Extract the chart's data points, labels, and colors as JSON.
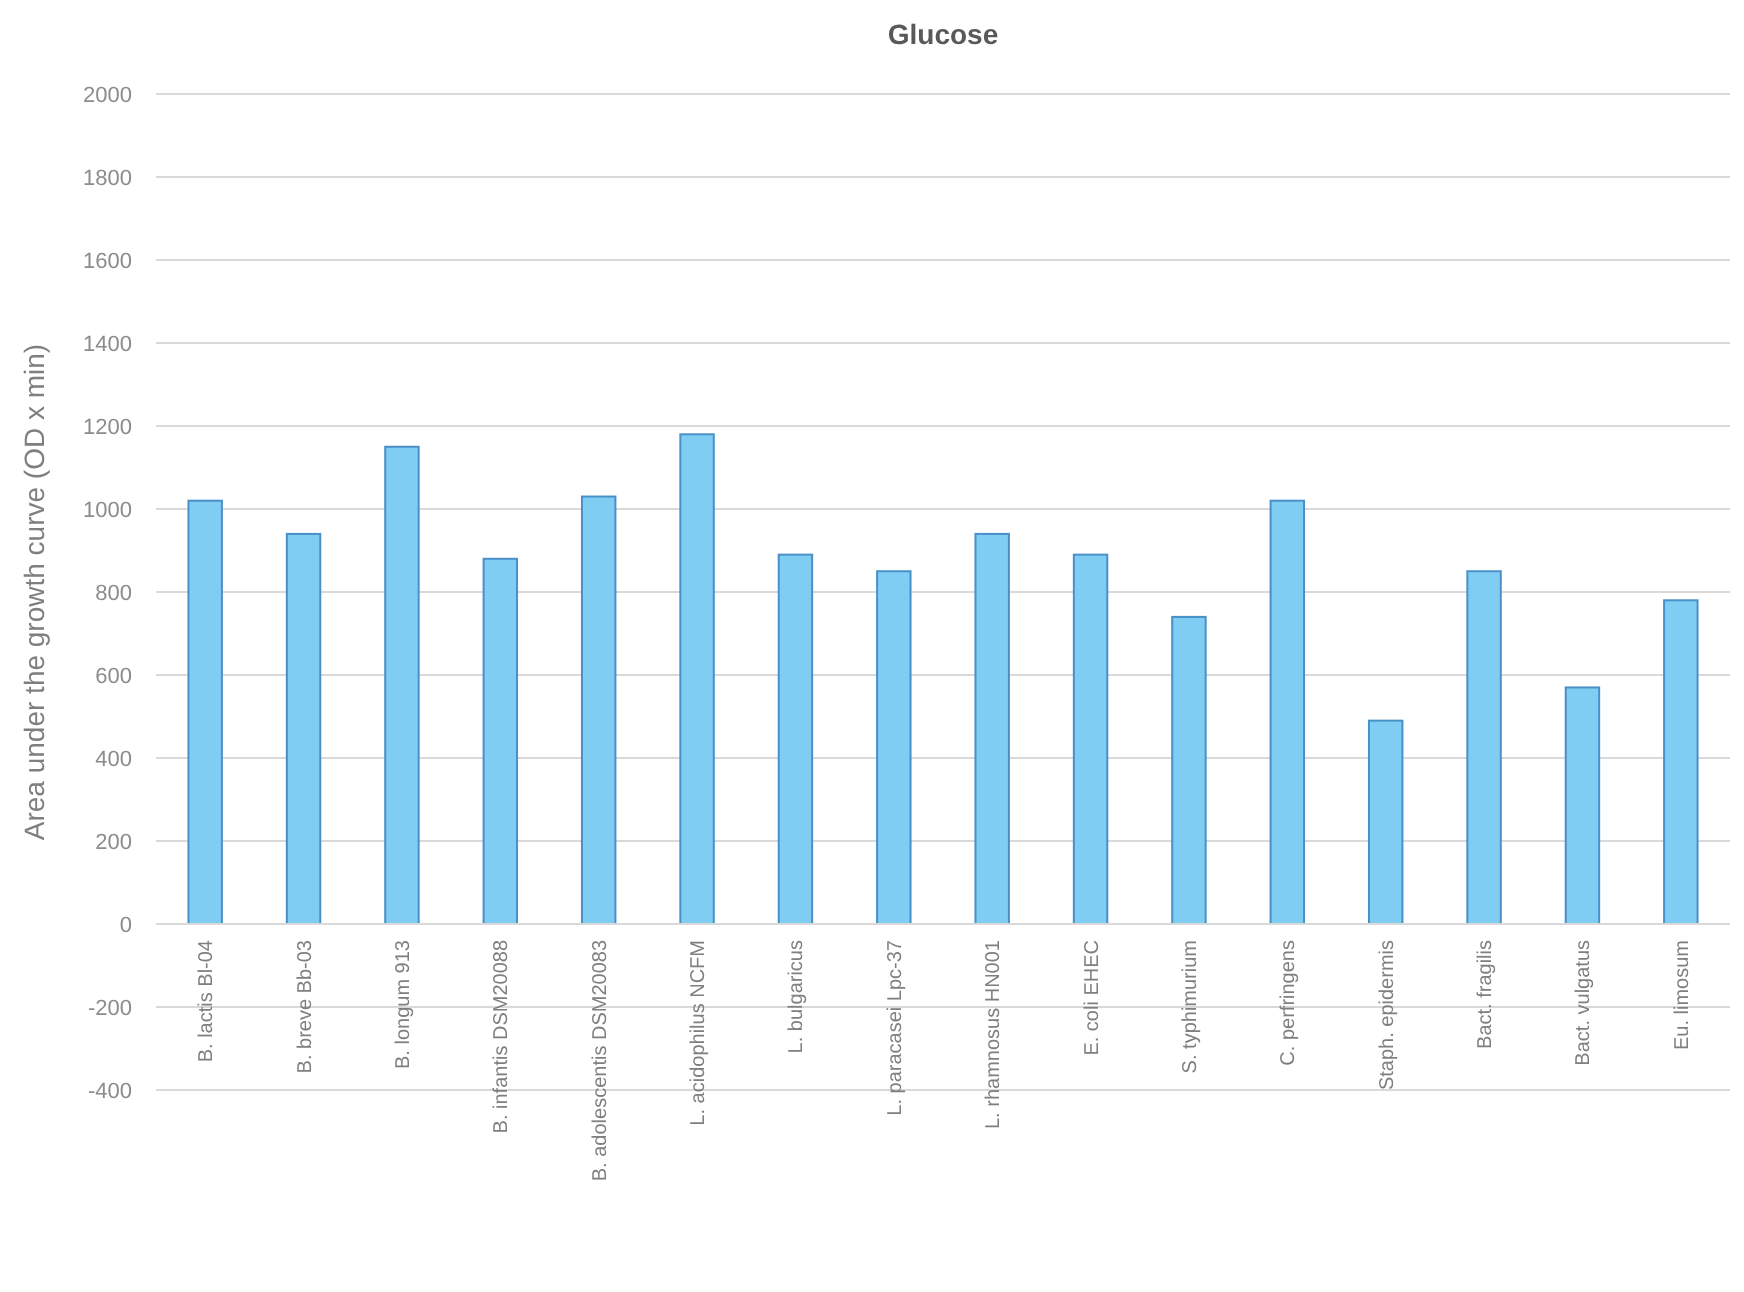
{
  "chart_data": {
    "type": "bar",
    "title": "Glucose",
    "ylabel": "Area under the growth curve (OD x min)",
    "categories": [
      "B. lactis Bl-04",
      "B. breve Bb-03",
      "B. longum 913",
      "B. infantis DSM20088",
      "B. adolescentis DSM20083",
      "L. acidophilus NCFM",
      "L. bulgaricus",
      "L. paracasei Lpc-37",
      "L. rhamnosus HN001",
      "E. coli EHEC",
      "S. typhimurium",
      "C. perfringens",
      "Staph. epidermis",
      "Bact. fragilis",
      "Bact. vulgatus",
      "Eu. limosum"
    ],
    "values": [
      1020,
      940,
      1150,
      880,
      1030,
      1180,
      890,
      850,
      940,
      890,
      740,
      1020,
      490,
      850,
      570,
      780
    ],
    "color": "#80cdf4",
    "ylim": [
      -400,
      2000
    ],
    "yticks": [
      -400,
      -200,
      0,
      200,
      400,
      600,
      800,
      1000,
      1200,
      1400,
      1600,
      1800,
      2000
    ],
    "grid": "y"
  }
}
